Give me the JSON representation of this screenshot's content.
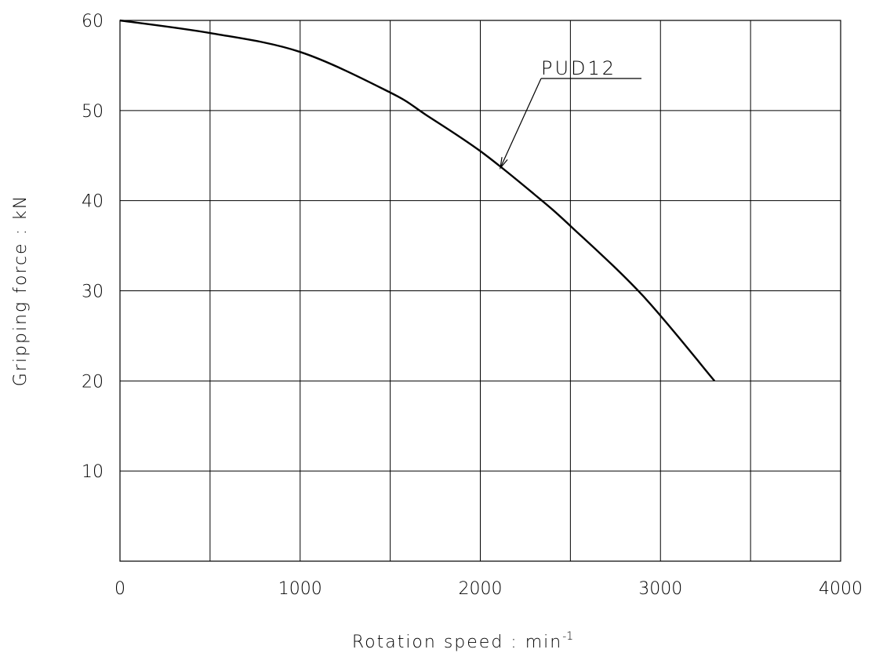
{
  "chart_data": {
    "type": "line",
    "title": "",
    "xlabel": "Rotation speed : min",
    "xlabel_superscript": "-1",
    "ylabel": "Gripping force : kN",
    "xlim": [
      0,
      4000
    ],
    "ylim": [
      0,
      60
    ],
    "x_ticks": [
      "0",
      "1000",
      "2000",
      "3000",
      "4000"
    ],
    "y_ticks": [
      "10",
      "20",
      "30",
      "40",
      "50",
      "60"
    ],
    "grid": true,
    "x_grid_step": 500,
    "y_grid_step": 10,
    "series": [
      {
        "name": "PUD12",
        "x": [
          0,
          500,
          1000,
          1500,
          1700,
          2000,
          2300,
          2500,
          2900,
          3300
        ],
        "y": [
          60,
          58.6,
          56.5,
          52,
          49.5,
          45.5,
          40.7,
          37.2,
          29.5,
          20
        ]
      }
    ],
    "annotations": [
      {
        "text": "PUD12",
        "points_to": {
          "x": 2100,
          "y": 43.5
        }
      }
    ]
  }
}
